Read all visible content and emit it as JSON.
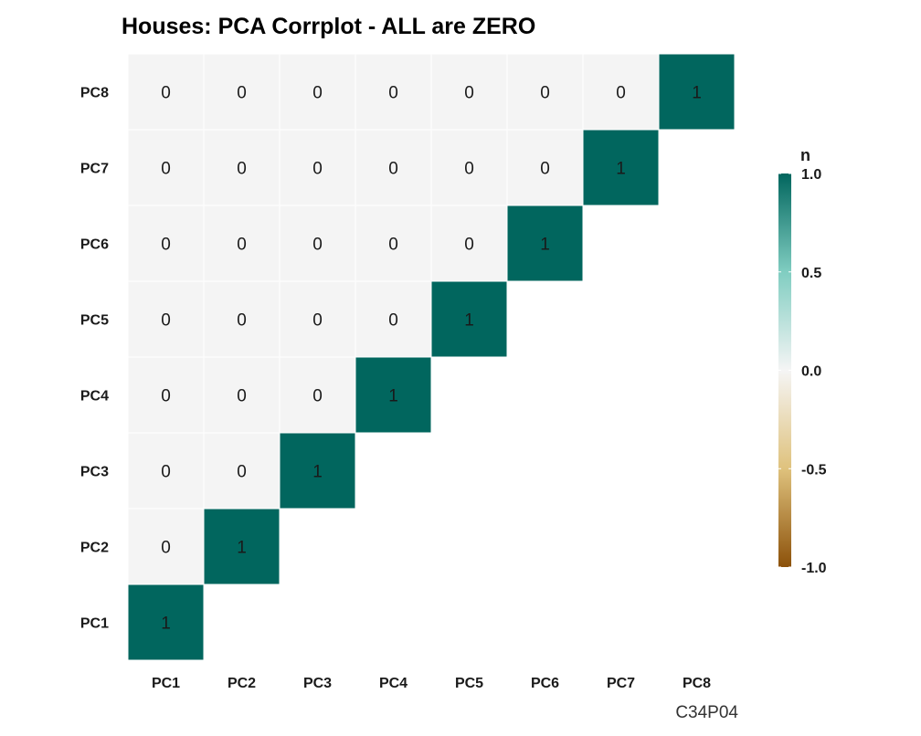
{
  "chart_data": {
    "type": "heatmap",
    "title": "Houses: PCA Corrplot - ALL are ZERO",
    "xlabel": "",
    "ylabel": "",
    "x_categories": [
      "PC1",
      "PC2",
      "PC3",
      "PC4",
      "PC5",
      "PC6",
      "PC7",
      "PC8"
    ],
    "y_categories": [
      "PC1",
      "PC2",
      "PC3",
      "PC4",
      "PC5",
      "PC6",
      "PC7",
      "PC8"
    ],
    "layout": "lower triangle (upper-left in display), diagonal included",
    "values": [
      {
        "x": "PC1",
        "y": "PC1",
        "value": 1
      },
      {
        "x": "PC1",
        "y": "PC2",
        "value": 0
      },
      {
        "x": "PC2",
        "y": "PC2",
        "value": 1
      },
      {
        "x": "PC1",
        "y": "PC3",
        "value": 0
      },
      {
        "x": "PC2",
        "y": "PC3",
        "value": 0
      },
      {
        "x": "PC3",
        "y": "PC3",
        "value": 1
      },
      {
        "x": "PC1",
        "y": "PC4",
        "value": 0
      },
      {
        "x": "PC2",
        "y": "PC4",
        "value": 0
      },
      {
        "x": "PC3",
        "y": "PC4",
        "value": 0
      },
      {
        "x": "PC4",
        "y": "PC4",
        "value": 1
      },
      {
        "x": "PC1",
        "y": "PC5",
        "value": 0
      },
      {
        "x": "PC2",
        "y": "PC5",
        "value": 0
      },
      {
        "x": "PC3",
        "y": "PC5",
        "value": 0
      },
      {
        "x": "PC4",
        "y": "PC5",
        "value": 0
      },
      {
        "x": "PC5",
        "y": "PC5",
        "value": 1
      },
      {
        "x": "PC1",
        "y": "PC6",
        "value": 0
      },
      {
        "x": "PC2",
        "y": "PC6",
        "value": 0
      },
      {
        "x": "PC3",
        "y": "PC6",
        "value": 0
      },
      {
        "x": "PC4",
        "y": "PC6",
        "value": 0
      },
      {
        "x": "PC5",
        "y": "PC6",
        "value": 0
      },
      {
        "x": "PC6",
        "y": "PC6",
        "value": 1
      },
      {
        "x": "PC1",
        "y": "PC7",
        "value": 0
      },
      {
        "x": "PC2",
        "y": "PC7",
        "value": 0
      },
      {
        "x": "PC3",
        "y": "PC7",
        "value": 0
      },
      {
        "x": "PC4",
        "y": "PC7",
        "value": 0
      },
      {
        "x": "PC5",
        "y": "PC7",
        "value": 0
      },
      {
        "x": "PC6",
        "y": "PC7",
        "value": 0
      },
      {
        "x": "PC7",
        "y": "PC7",
        "value": 1
      },
      {
        "x": "PC1",
        "y": "PC8",
        "value": 0
      },
      {
        "x": "PC2",
        "y": "PC8",
        "value": 0
      },
      {
        "x": "PC3",
        "y": "PC8",
        "value": 0
      },
      {
        "x": "PC4",
        "y": "PC8",
        "value": 0
      },
      {
        "x": "PC5",
        "y": "PC8",
        "value": 0
      },
      {
        "x": "PC6",
        "y": "PC8",
        "value": 0
      },
      {
        "x": "PC7",
        "y": "PC8",
        "value": 0
      },
      {
        "x": "PC8",
        "y": "PC8",
        "value": 1
      }
    ],
    "colorscale": {
      "title": "n",
      "range": [
        -1.0,
        1.0
      ],
      "ticks": [
        1.0,
        0.5,
        0.0,
        -0.5,
        -1.0
      ],
      "tick_labels": [
        "1.0",
        "0.5",
        "0.0",
        "-0.5",
        "-1.0"
      ],
      "stops": [
        {
          "value": -1.0,
          "color": "#8c510a"
        },
        {
          "value": -0.5,
          "color": "#dfc27d"
        },
        {
          "value": 0.0,
          "color": "#f5f5f5"
        },
        {
          "value": 0.5,
          "color": "#80cdc1"
        },
        {
          "value": 1.0,
          "color": "#01665e"
        }
      ]
    },
    "grid": false,
    "legend_position": "right",
    "caption": "C34P04"
  },
  "colors": {
    "background": "#ffffff",
    "cell_border": "#ffffff",
    "text": "#1a1a1a"
  }
}
